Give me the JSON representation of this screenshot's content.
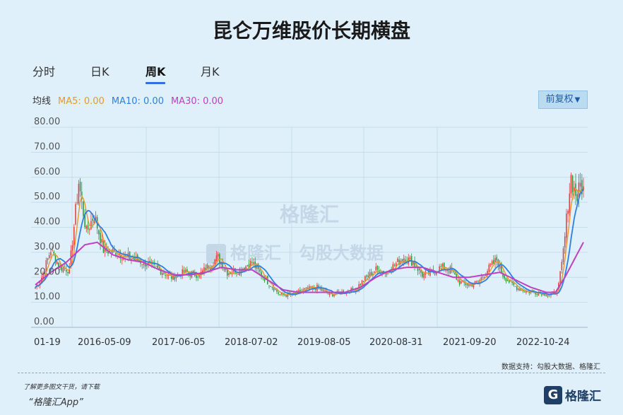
{
  "title": "昆仑万维股价长期横盘",
  "tabs": [
    {
      "label": "分时",
      "active": false
    },
    {
      "label": "日K",
      "active": false
    },
    {
      "label": "周K",
      "active": true
    },
    {
      "label": "月K",
      "active": false
    }
  ],
  "legend": {
    "label": "均线",
    "ma5": "MA5: 0.00",
    "ma10": "MA10: 0.00",
    "ma30": "MA30: 0.00",
    "colors": {
      "ma5": "#e59a2b",
      "ma10": "#2f7fe0",
      "ma30": "#c040c0",
      "up": "#e04040",
      "down": "#2a9a3a"
    }
  },
  "adjust_button": "前复权",
  "watermarks": {
    "brand": "格隆汇",
    "brand_url": "www.gelonghui.com",
    "data_brand": "勾股大数据",
    "data_url": "www.gogudata.com"
  },
  "source": "数据支持：勾股大数据、格隆汇",
  "promo_line1": "了解更多图文干货，请下载",
  "promo_line2": "“格隆汇App”",
  "logo_text": "格隆汇",
  "logo_mark": "G",
  "chart_data": {
    "type": "candlestick",
    "ylim": [
      0,
      80
    ],
    "yticks": [
      "0.00",
      "10.00",
      "20.00",
      "30.00",
      "40.00",
      "50.00",
      "60.00",
      "70.00",
      "80.00"
    ],
    "xtick_labels": [
      "01-19",
      "2016-05-09",
      "2017-06-05",
      "2018-07-02",
      "2019-08-05",
      "2020-08-31",
      "2021-09-20",
      "2022-10-24"
    ],
    "grid": true,
    "close_anchors": [
      [
        0,
        16
      ],
      [
        4,
        20
      ],
      [
        10,
        31
      ],
      [
        16,
        24
      ],
      [
        22,
        23
      ],
      [
        28,
        58
      ],
      [
        33,
        38
      ],
      [
        38,
        45
      ],
      [
        44,
        31
      ],
      [
        52,
        30
      ],
      [
        60,
        28
      ],
      [
        70,
        26
      ],
      [
        80,
        23
      ],
      [
        88,
        20
      ],
      [
        96,
        22
      ],
      [
        106,
        21
      ],
      [
        114,
        26
      ],
      [
        118,
        28
      ],
      [
        124,
        22
      ],
      [
        132,
        23
      ],
      [
        140,
        26
      ],
      [
        146,
        21
      ],
      [
        152,
        17
      ],
      [
        158,
        13
      ],
      [
        166,
        13
      ],
      [
        174,
        15
      ],
      [
        182,
        16
      ],
      [
        190,
        13
      ],
      [
        198,
        14
      ],
      [
        206,
        15
      ],
      [
        214,
        20
      ],
      [
        220,
        23
      ],
      [
        226,
        22
      ],
      [
        232,
        25
      ],
      [
        238,
        28
      ],
      [
        244,
        26
      ],
      [
        250,
        21
      ],
      [
        256,
        22
      ],
      [
        262,
        24
      ],
      [
        268,
        23
      ],
      [
        274,
        18
      ],
      [
        280,
        17
      ],
      [
        286,
        18
      ],
      [
        292,
        23
      ],
      [
        298,
        27
      ],
      [
        302,
        21
      ],
      [
        308,
        17
      ],
      [
        314,
        15
      ],
      [
        320,
        14
      ],
      [
        326,
        14
      ],
      [
        332,
        13
      ],
      [
        336,
        14
      ],
      [
        338,
        17
      ],
      [
        340,
        25
      ],
      [
        342,
        36
      ],
      [
        344,
        50
      ],
      [
        346,
        60
      ],
      [
        348,
        55
      ],
      [
        350,
        52
      ],
      [
        352,
        57
      ],
      [
        354,
        55
      ]
    ],
    "ma30_anchors": [
      [
        0,
        17
      ],
      [
        10,
        22
      ],
      [
        20,
        26
      ],
      [
        32,
        33
      ],
      [
        40,
        34
      ],
      [
        50,
        29
      ],
      [
        60,
        27
      ],
      [
        70,
        26
      ],
      [
        80,
        23
      ],
      [
        90,
        21
      ],
      [
        100,
        21
      ],
      [
        110,
        22
      ],
      [
        120,
        24
      ],
      [
        130,
        23
      ],
      [
        140,
        23
      ],
      [
        150,
        19
      ],
      [
        160,
        15
      ],
      [
        170,
        14
      ],
      [
        180,
        14
      ],
      [
        190,
        14
      ],
      [
        200,
        14
      ],
      [
        210,
        16
      ],
      [
        220,
        20
      ],
      [
        230,
        23
      ],
      [
        240,
        24
      ],
      [
        250,
        24
      ],
      [
        260,
        22
      ],
      [
        270,
        20
      ],
      [
        280,
        20
      ],
      [
        290,
        21
      ],
      [
        300,
        22
      ],
      [
        310,
        19
      ],
      [
        320,
        16
      ],
      [
        330,
        14
      ],
      [
        336,
        14
      ],
      [
        342,
        20
      ],
      [
        348,
        27
      ],
      [
        354,
        34
      ]
    ],
    "candle_count": 355,
    "series": [
      {
        "name": "MA5",
        "color": "#e59a2b"
      },
      {
        "name": "MA10",
        "color": "#2f7fe0"
      },
      {
        "name": "MA30",
        "color": "#c040c0"
      }
    ]
  }
}
